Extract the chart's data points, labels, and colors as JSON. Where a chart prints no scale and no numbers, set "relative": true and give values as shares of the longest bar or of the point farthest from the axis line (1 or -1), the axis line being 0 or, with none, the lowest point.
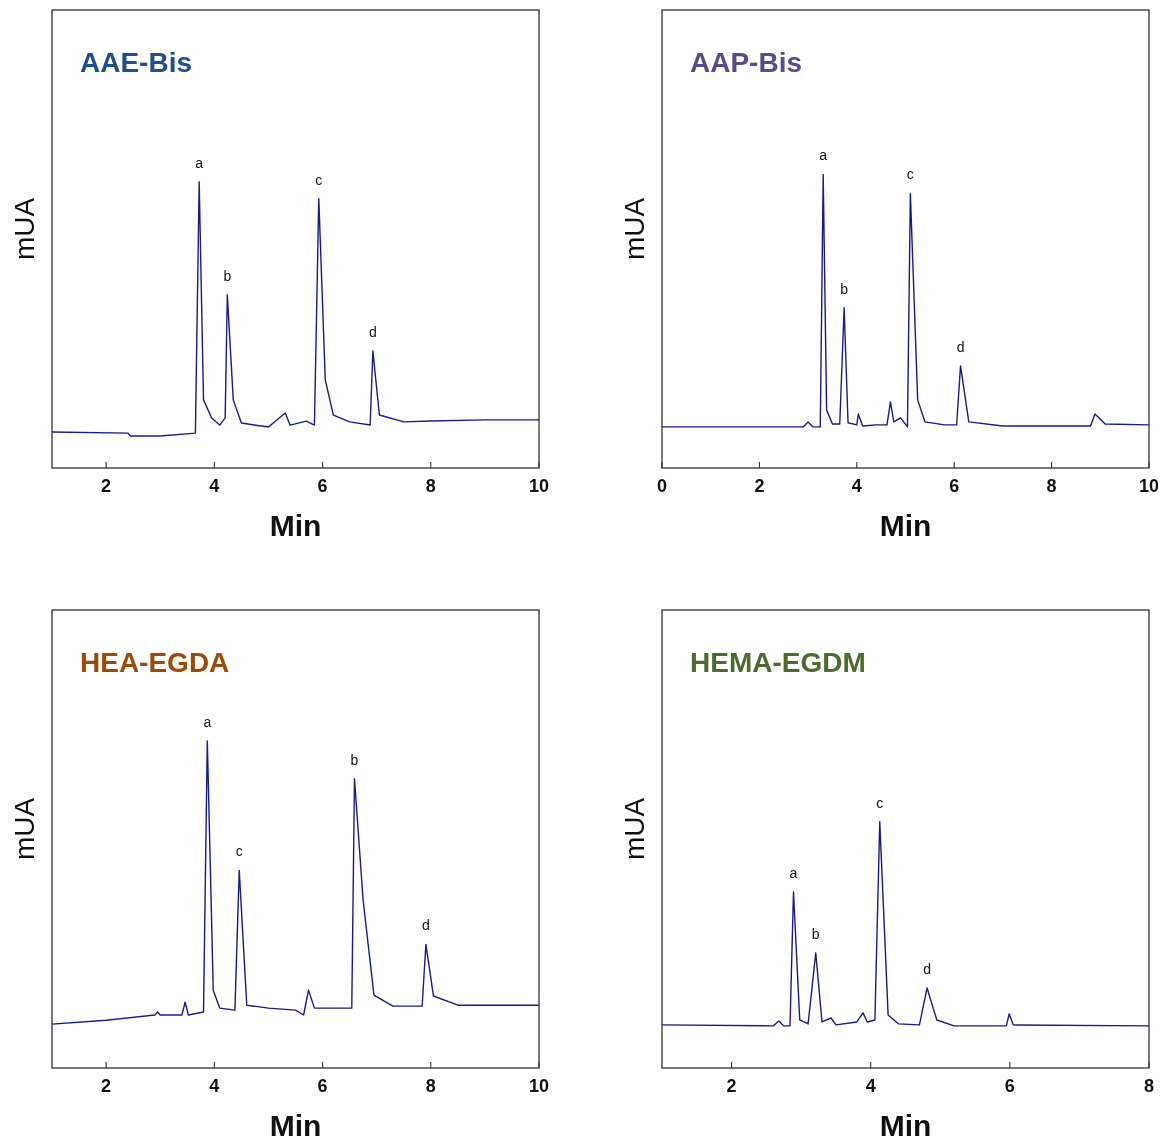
{
  "chart_data": [
    {
      "type": "line",
      "title": "AAE-Bis",
      "xlabel": "Min",
      "ylabel": "mUA",
      "relative": true,
      "tick_labels": "x",
      "xlim": [
        1,
        10
      ],
      "xticks": [
        2,
        4,
        6,
        8,
        10
      ],
      "series": [
        {
          "color": "#1a1a8c",
          "x": [
            1,
            2.4,
            2.45,
            3.0,
            3.65,
            3.72,
            3.8,
            3.95,
            4.1,
            4.2,
            4.24,
            4.35,
            4.5,
            5.0,
            5.31,
            5.4,
            5.7,
            5.85,
            5.93,
            6.05,
            6.2,
            6.5,
            6.88,
            6.93,
            7.05,
            7.5,
            8,
            9,
            10
          ],
          "values": [
            0.126,
            0.122,
            0.112,
            0.112,
            0.122,
            1,
            0.238,
            0.175,
            0.15,
            0.175,
            0.605,
            0.238,
            0.157,
            0.143,
            0.192,
            0.15,
            0.164,
            0.15,
            0.941,
            0.308,
            0.185,
            0.161,
            0.15,
            0.409,
            0.185,
            0.161,
            0.164,
            0.168,
            0.168
          ]
        }
      ],
      "annotations": [
        {
          "text": "a",
          "x": 3.72,
          "y": 1
        },
        {
          "text": "b",
          "x": 4.24,
          "y": 0.605
        },
        {
          "text": "c",
          "x": 5.93,
          "y": 0.941
        },
        {
          "text": "d",
          "x": 6.93,
          "y": 0.409
        }
      ]
    },
    {
      "type": "line",
      "title": "AAP-Bis",
      "xlabel": "Min",
      "ylabel": "mUA",
      "relative": true,
      "tick_labels": "x",
      "xlim": [
        0,
        10
      ],
      "xticks": [
        0,
        2,
        4,
        6,
        8,
        10
      ],
      "series": [
        {
          "color": "#1a1a8c",
          "x": [
            0,
            2.9,
            3.0,
            3.1,
            3.25,
            3.31,
            3.38,
            3.5,
            3.65,
            3.74,
            3.82,
            4.0,
            4.03,
            4.12,
            4.4,
            4.62,
            4.69,
            4.76,
            4.9,
            5.04,
            5.1,
            5.25,
            5.4,
            5.8,
            6.05,
            6.13,
            6.3,
            7,
            8.8,
            8.89,
            9.1,
            10
          ],
          "values": [
            0.14,
            0.14,
            0.157,
            0.14,
            0.14,
            1,
            0.198,
            0.15,
            0.15,
            0.546,
            0.154,
            0.147,
            0.184,
            0.143,
            0.147,
            0.147,
            0.225,
            0.157,
            0.171,
            0.14,
            0.935,
            0.232,
            0.157,
            0.147,
            0.147,
            0.348,
            0.157,
            0.143,
            0.143,
            0.184,
            0.15,
            0.147
          ]
        }
      ],
      "annotations": [
        {
          "text": "a",
          "x": 3.31,
          "y": 1
        },
        {
          "text": "b",
          "x": 3.74,
          "y": 0.546
        },
        {
          "text": "c",
          "x": 5.1,
          "y": 0.935
        },
        {
          "text": "d",
          "x": 6.13,
          "y": 0.348
        }
      ]
    },
    {
      "type": "line",
      "title": "HEA-EGDA",
      "xlabel": "Min",
      "ylabel": "mUA",
      "relative": true,
      "tick_labels": "x",
      "xlim": [
        1,
        10
      ],
      "xticks": [
        2,
        4,
        6,
        8,
        10
      ],
      "series": [
        {
          "color": "#1a1a8c",
          "x": [
            1,
            2,
            2.9,
            2.95,
            3.0,
            3.4,
            3.46,
            3.52,
            3.8,
            3.87,
            3.98,
            4.1,
            4.38,
            4.46,
            4.6,
            5,
            5.5,
            5.65,
            5.74,
            5.85,
            6.4,
            6.54,
            6.59,
            6.75,
            6.95,
            7.3,
            7.84,
            7.91,
            8.05,
            8.5,
            10
          ],
          "values": [
            0.134,
            0.146,
            0.162,
            0.171,
            0.162,
            0.162,
            0.201,
            0.162,
            0.171,
            1,
            0.238,
            0.183,
            0.177,
            0.604,
            0.192,
            0.183,
            0.177,
            0.162,
            0.238,
            0.183,
            0.183,
            0.183,
            0.884,
            0.512,
            0.223,
            0.189,
            0.189,
            0.378,
            0.22,
            0.192,
            0.192
          ]
        }
      ],
      "annotations": [
        {
          "text": "a",
          "x": 3.87,
          "y": 1
        },
        {
          "text": "c",
          "x": 4.46,
          "y": 0.604
        },
        {
          "text": "b",
          "x": 6.59,
          "y": 0.884
        },
        {
          "text": "d",
          "x": 7.91,
          "y": 0.378
        }
      ]
    },
    {
      "type": "line",
      "title": "HEMA-EGDM",
      "xlabel": "Min",
      "ylabel": "mUA",
      "relative": true,
      "tick_labels": "x",
      "xlim": [
        1,
        8
      ],
      "xticks": [
        2,
        4,
        6,
        8
      ],
      "series": [
        {
          "color": "#1a1a8c",
          "x": [
            1,
            2.6,
            2.68,
            2.75,
            2.84,
            2.89,
            2.98,
            3.1,
            3.21,
            3.3,
            3.43,
            3.5,
            3.8,
            3.89,
            3.95,
            4.06,
            4.13,
            4.25,
            4.4,
            4.7,
            4.81,
            4.95,
            5.2,
            5.95,
            5.99,
            6.05,
            8
          ],
          "values": [
            0.175,
            0.171,
            0.191,
            0.171,
            0.171,
            0.715,
            0.195,
            0.179,
            0.467,
            0.187,
            0.203,
            0.175,
            0.187,
            0.224,
            0.187,
            0.195,
            1,
            0.215,
            0.179,
            0.175,
            0.325,
            0.195,
            0.171,
            0.171,
            0.22,
            0.175,
            0.171
          ]
        }
      ],
      "annotations": [
        {
          "text": "a",
          "x": 2.89,
          "y": 0.715
        },
        {
          "text": "b",
          "x": 3.21,
          "y": 0.467
        },
        {
          "text": "c",
          "x": 4.13,
          "y": 1
        },
        {
          "text": "d",
          "x": 4.81,
          "y": 0.325
        }
      ]
    }
  ]
}
